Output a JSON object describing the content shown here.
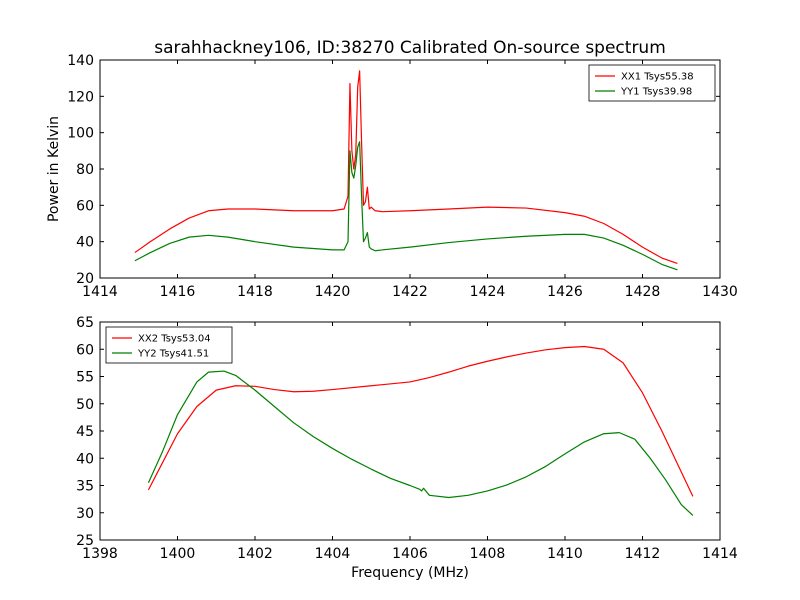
{
  "chart_data": [
    {
      "type": "line",
      "title": "sarahhackney106, ID:38270 Calibrated On-source spectrum",
      "xlabel": "",
      "ylabel": "Power in Kelvin",
      "xlim": [
        1414,
        1430
      ],
      "ylim": [
        20,
        140
      ],
      "xticks": [
        1414,
        1416,
        1418,
        1420,
        1422,
        1424,
        1426,
        1428,
        1430
      ],
      "yticks": [
        20,
        40,
        60,
        80,
        100,
        120,
        140
      ],
      "legend_position": "upper-right",
      "series": [
        {
          "name": "XX1 Tsys55.38",
          "color": "#ff0000",
          "x": [
            1414.9,
            1415.3,
            1415.8,
            1416.3,
            1416.8,
            1417.3,
            1418.0,
            1419.0,
            1420.0,
            1420.3,
            1420.4,
            1420.45,
            1420.5,
            1420.55,
            1420.6,
            1420.65,
            1420.7,
            1420.75,
            1420.8,
            1420.85,
            1420.9,
            1420.95,
            1421.0,
            1421.1,
            1421.3,
            1422.0,
            1423.0,
            1424.0,
            1425.0,
            1426.0,
            1426.5,
            1427.0,
            1427.5,
            1428.0,
            1428.5,
            1428.9
          ],
          "y": [
            34,
            40,
            47,
            53,
            57,
            58,
            58,
            57,
            57,
            58,
            65,
            127,
            90,
            80,
            88,
            125,
            134,
            95,
            60,
            62,
            70,
            58,
            59,
            57,
            56.5,
            57,
            58,
            59,
            58.5,
            56,
            54,
            50,
            44,
            37,
            31,
            28
          ]
        },
        {
          "name": "YY1 Tsys39.98",
          "color": "#008000",
          "x": [
            1414.9,
            1415.3,
            1415.8,
            1416.3,
            1416.8,
            1417.3,
            1418.0,
            1419.0,
            1420.0,
            1420.3,
            1420.4,
            1420.45,
            1420.5,
            1420.55,
            1420.6,
            1420.65,
            1420.7,
            1420.75,
            1420.8,
            1420.85,
            1420.9,
            1420.95,
            1421.0,
            1421.1,
            1421.3,
            1422.0,
            1423.0,
            1424.0,
            1425.0,
            1426.0,
            1426.5,
            1427.0,
            1427.5,
            1428.0,
            1428.5,
            1428.9
          ],
          "y": [
            29.5,
            34,
            39,
            42.5,
            43.5,
            42.5,
            40,
            37,
            35.5,
            35.5,
            40,
            90,
            78,
            75,
            82,
            92,
            95,
            65,
            40,
            42,
            45,
            37,
            36,
            35,
            35.5,
            37,
            39.5,
            41.5,
            43,
            44,
            44,
            42,
            38,
            33,
            27.5,
            24.5
          ]
        }
      ]
    },
    {
      "type": "line",
      "title": "",
      "xlabel": "Frequency (MHz)",
      "ylabel": "",
      "xlim": [
        1398,
        1414
      ],
      "ylim": [
        25,
        65
      ],
      "xticks": [
        1398,
        1400,
        1402,
        1404,
        1406,
        1408,
        1410,
        1412,
        1414
      ],
      "yticks": [
        25,
        30,
        35,
        40,
        45,
        50,
        55,
        60,
        65
      ],
      "legend_position": "upper-left",
      "series": [
        {
          "name": "XX2 Tsys53.04",
          "color": "#ff0000",
          "x": [
            1399.25,
            1399.6,
            1400.0,
            1400.5,
            1401.0,
            1401.5,
            1402.0,
            1402.5,
            1403.0,
            1403.5,
            1404.0,
            1405.0,
            1406.0,
            1406.5,
            1407.0,
            1407.5,
            1408.0,
            1408.5,
            1409.0,
            1409.5,
            1410.0,
            1410.5,
            1411.0,
            1411.5,
            1412.0,
            1412.5,
            1413.0,
            1413.3
          ],
          "y": [
            34.2,
            39,
            44.5,
            49.5,
            52.5,
            53.3,
            53.2,
            52.6,
            52.2,
            52.3,
            52.6,
            53.3,
            54,
            54.8,
            55.8,
            56.9,
            57.8,
            58.6,
            59.3,
            59.9,
            60.3,
            60.5,
            60,
            57.5,
            52,
            45,
            37.5,
            33
          ]
        },
        {
          "name": "YY2 Tsys41.51",
          "color": "#008000",
          "x": [
            1399.25,
            1399.6,
            1400.0,
            1400.5,
            1400.8,
            1401.2,
            1401.5,
            1402.0,
            1402.5,
            1403.0,
            1403.5,
            1404.0,
            1404.5,
            1405.0,
            1405.5,
            1406.0,
            1406.25,
            1406.3,
            1406.35,
            1406.5,
            1407.0,
            1407.5,
            1408.0,
            1408.5,
            1409.0,
            1409.5,
            1410.0,
            1410.5,
            1411.0,
            1411.4,
            1411.8,
            1412.2,
            1412.6,
            1413.0,
            1413.3
          ],
          "y": [
            35.5,
            41,
            48,
            54,
            55.8,
            56,
            55.2,
            52.5,
            49.5,
            46.5,
            44,
            41.8,
            39.8,
            38,
            36.3,
            35,
            34.3,
            34,
            34.5,
            33.2,
            32.8,
            33.2,
            34,
            35.1,
            36.6,
            38.5,
            40.8,
            43,
            44.5,
            44.7,
            43.5,
            40,
            36,
            31.5,
            29.5
          ]
        }
      ]
    }
  ]
}
